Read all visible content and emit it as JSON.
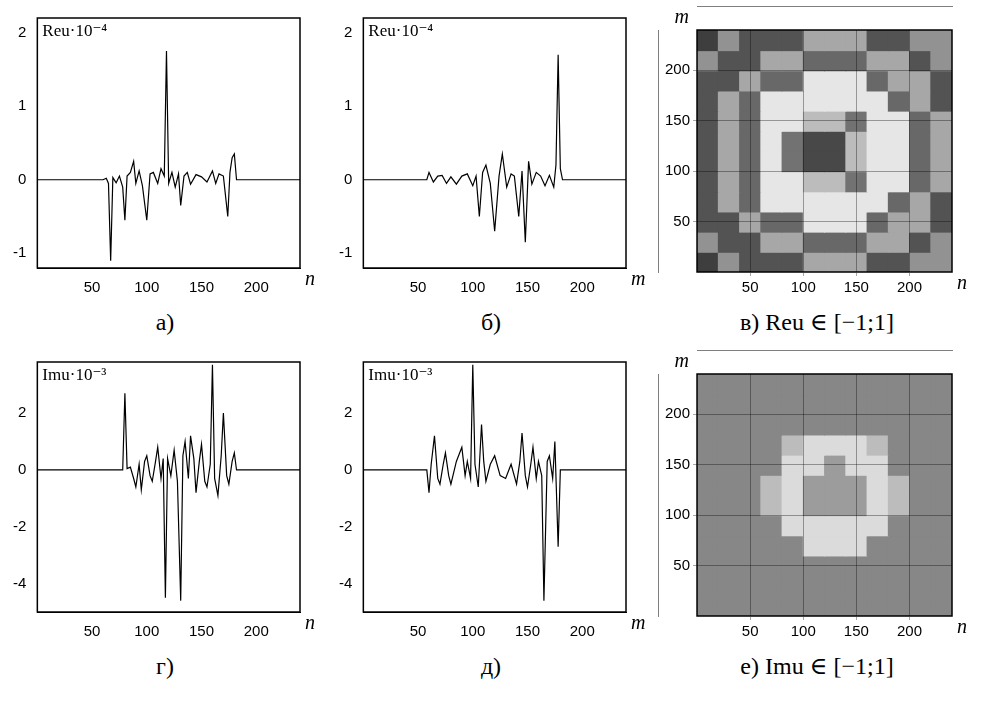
{
  "chart_data": [
    {
      "type": "line",
      "title": "а)",
      "annotation": "Reu·10⁻⁴",
      "x_label": "n",
      "color": "#000000",
      "grid": false,
      "x": [
        0,
        60,
        63,
        65,
        67,
        69,
        72,
        75,
        78,
        80,
        82,
        85,
        88,
        90,
        93,
        96,
        100,
        103,
        106,
        110,
        113,
        116,
        118,
        120,
        123,
        126,
        129,
        131,
        134,
        137,
        140,
        145,
        150,
        155,
        160,
        163,
        166,
        170,
        174,
        176,
        178,
        180,
        182,
        240
      ],
      "values": [
        0,
        0,
        0.02,
        -0.05,
        -1.1,
        0.03,
        -0.04,
        0.05,
        -0.1,
        -0.55,
        0.05,
        0.1,
        0.25,
        -0.05,
        0.12,
        -0.08,
        -0.55,
        0.08,
        0.1,
        -0.05,
        0.15,
        0.05,
        1.75,
        -0.05,
        0.1,
        -0.1,
        0.08,
        -0.35,
        0.05,
        0.1,
        -0.06,
        0.07,
        0.04,
        -0.03,
        0.12,
        -0.05,
        0.08,
        0.05,
        -0.5,
        0.1,
        0.3,
        0.35,
        0,
        0
      ],
      "xlim": [
        0,
        240
      ],
      "xticks": [
        50,
        100,
        150,
        200
      ],
      "ylim": [
        -1.2,
        2.2
      ],
      "yticks": [
        -1,
        0,
        1,
        2
      ]
    },
    {
      "type": "line",
      "title": "б)",
      "annotation": "Reu·10⁻⁴",
      "x_label": "m",
      "color": "#000000",
      "grid": false,
      "x": [
        0,
        58,
        60,
        64,
        68,
        72,
        76,
        80,
        85,
        90,
        95,
        100,
        103,
        106,
        109,
        112,
        116,
        120,
        124,
        127,
        131,
        135,
        138,
        142,
        145,
        148,
        151,
        154,
        158,
        162,
        166,
        170,
        174,
        176,
        178,
        180,
        182,
        240
      ],
      "values": [
        0,
        0,
        0.1,
        -0.03,
        0.05,
        0.06,
        -0.05,
        0.04,
        -0.06,
        0.05,
        0.08,
        -0.08,
        0.05,
        -0.5,
        0.1,
        0.2,
        -0.05,
        -0.7,
        0.05,
        0.35,
        -0.1,
        0.08,
        0.05,
        -0.5,
        0.12,
        -0.85,
        0.25,
        -0.06,
        0.1,
        0.05,
        -0.08,
        0.06,
        -0.1,
        0.2,
        1.7,
        0.15,
        0,
        0
      ],
      "xlim": [
        0,
        240
      ],
      "xticks": [
        50,
        100,
        150,
        200
      ],
      "ylim": [
        -1.2,
        2.2
      ],
      "yticks": [
        -1,
        0,
        1,
        2
      ]
    },
    {
      "type": "heatmap",
      "title": "в) Reu ∈ [−1;1]",
      "x_label": "n",
      "y_label": "m",
      "grid": true,
      "x": [
        10,
        30,
        50,
        70,
        90,
        110,
        130,
        150,
        170,
        190,
        210,
        230
      ],
      "y": [
        10,
        30,
        50,
        70,
        90,
        110,
        130,
        150,
        170,
        190,
        210,
        230
      ],
      "cells": [
        [
          -0.7,
          0.1,
          -0.5,
          -0.5,
          -0.5,
          0.3,
          0.3,
          0.3,
          -0.5,
          -0.5,
          0.1,
          0.1
        ],
        [
          0.1,
          -0.5,
          -0.5,
          0.3,
          0.3,
          -0.3,
          -0.3,
          -0.3,
          0.3,
          0.3,
          -0.5,
          0.1
        ],
        [
          -0.5,
          -0.5,
          0.3,
          -0.3,
          -0.3,
          0.9,
          0.9,
          0.9,
          -0.3,
          0.3,
          0.3,
          -0.5
        ],
        [
          -0.5,
          0.3,
          -0.3,
          0.9,
          0.9,
          0.9,
          0.9,
          0.9,
          0.9,
          -0.3,
          0.3,
          -0.5
        ],
        [
          -0.5,
          0.3,
          -0.3,
          0.9,
          0.9,
          0.5,
          0.5,
          -0.2,
          0.9,
          0.9,
          -0.3,
          0.3
        ],
        [
          -0.5,
          0.3,
          -0.3,
          0.9,
          -0.2,
          -0.6,
          -0.6,
          0.5,
          0.9,
          0.9,
          -0.3,
          0.3
        ],
        [
          -0.5,
          0.3,
          -0.3,
          0.9,
          -0.2,
          -0.6,
          -0.6,
          0.5,
          0.9,
          0.9,
          -0.3,
          0.3
        ],
        [
          -0.5,
          0.3,
          -0.3,
          0.9,
          0.9,
          0.5,
          0.5,
          -0.2,
          0.9,
          0.9,
          -0.3,
          0.3
        ],
        [
          -0.5,
          0.3,
          -0.3,
          0.9,
          0.9,
          0.9,
          0.9,
          0.9,
          0.9,
          -0.3,
          0.3,
          -0.5
        ],
        [
          -0.5,
          -0.5,
          0.3,
          -0.3,
          -0.3,
          0.9,
          0.9,
          0.9,
          -0.3,
          0.3,
          0.3,
          -0.5
        ],
        [
          0.1,
          -0.5,
          -0.5,
          0.3,
          0.3,
          -0.3,
          -0.3,
          -0.3,
          0.3,
          0.3,
          -0.5,
          0.1
        ],
        [
          -0.7,
          0.1,
          -0.5,
          -0.5,
          -0.5,
          0.3,
          0.3,
          0.3,
          -0.5,
          -0.5,
          0.1,
          0.1
        ]
      ],
      "color_range": [
        -1,
        1
      ],
      "xlim": [
        0,
        240
      ],
      "xticks": [
        50,
        100,
        150,
        200
      ],
      "ylim": [
        0,
        240
      ],
      "yticks": [
        50,
        100,
        150,
        200
      ]
    },
    {
      "type": "line",
      "title": "г)",
      "annotation": "Imu·10⁻³",
      "x_label": "n",
      "color": "#000000",
      "grid": false,
      "x": [
        0,
        78,
        80,
        82,
        85,
        88,
        90,
        93,
        95,
        98,
        100,
        103,
        105,
        108,
        110,
        113,
        115,
        117,
        119,
        122,
        125,
        128,
        131,
        133,
        135,
        138,
        140,
        143,
        145,
        148,
        150,
        153,
        155,
        158,
        160,
        162,
        165,
        168,
        170,
        173,
        175,
        178,
        180,
        182,
        240
      ],
      "values": [
        0,
        0,
        2.7,
        0.05,
        0.1,
        -0.3,
        -0.6,
        0.2,
        -0.7,
        0.3,
        0.5,
        -0.2,
        -0.4,
        0.3,
        0.8,
        -0.3,
        0.4,
        -4.5,
        0.4,
        -0.2,
        0.7,
        -0.4,
        -4.6,
        0.5,
        1.0,
        -0.3,
        1.2,
        0.4,
        -0.8,
        0.3,
        0.9,
        -0.4,
        -0.6,
        0.2,
        3.7,
        -0.3,
        -0.9,
        0.5,
        2.0,
        -0.2,
        -0.5,
        0.3,
        0.6,
        0,
        0
      ],
      "xlim": [
        0,
        240
      ],
      "xticks": [
        50,
        100,
        150,
        200
      ],
      "ylim": [
        -5,
        3.8
      ],
      "yticks": [
        -4,
        -2,
        0,
        2
      ]
    },
    {
      "type": "line",
      "title": "д)",
      "annotation": "Imu·10⁻³",
      "x_label": "m",
      "color": "#000000",
      "grid": false,
      "x": [
        0,
        58,
        60,
        62,
        65,
        68,
        70,
        73,
        75,
        78,
        80,
        85,
        90,
        93,
        95,
        98,
        100,
        102,
        105,
        108,
        110,
        112,
        116,
        120,
        125,
        130,
        135,
        140,
        143,
        145,
        148,
        150,
        153,
        155,
        158,
        160,
        163,
        165,
        168,
        170,
        173,
        175,
        178,
        180,
        240
      ],
      "values": [
        0,
        0,
        -0.8,
        0.2,
        1.2,
        -0.3,
        -0.5,
        0.2,
        0.6,
        -0.2,
        -0.5,
        0.3,
        0.8,
        -0.2,
        0.3,
        -0.3,
        3.7,
        0.2,
        -0.6,
        1.6,
        0.3,
        -0.4,
        0.2,
        0.5,
        -0.2,
        -0.3,
        0.2,
        -0.5,
        0.3,
        1.3,
        -0.2,
        -0.6,
        0.2,
        0.8,
        -0.3,
        0.3,
        -0.2,
        -4.6,
        0.3,
        0.5,
        -0.3,
        1.0,
        -2.7,
        0,
        0
      ],
      "xlim": [
        0,
        240
      ],
      "xticks": [
        50,
        100,
        150,
        200
      ],
      "ylim": [
        -5,
        3.8
      ],
      "yticks": [
        -4,
        -2,
        0,
        2
      ]
    },
    {
      "type": "heatmap",
      "title": "е) Imu ∈ [−1;1]",
      "x_label": "n",
      "y_label": "m",
      "grid": true,
      "x": [
        10,
        30,
        50,
        70,
        90,
        110,
        130,
        150,
        170,
        190,
        210,
        230
      ],
      "y": [
        10,
        30,
        50,
        70,
        90,
        110,
        130,
        150,
        170,
        190,
        210,
        230
      ],
      "cells": [
        [
          0,
          0,
          0,
          0,
          0,
          0,
          0,
          0,
          0,
          0,
          0,
          0
        ],
        [
          0,
          0,
          0,
          0,
          0,
          0,
          0,
          0,
          0,
          0,
          0,
          0
        ],
        [
          0,
          0,
          0,
          0,
          0,
          0,
          0,
          0,
          0,
          0,
          0,
          0
        ],
        [
          0,
          0,
          0,
          0,
          0,
          0.8,
          0.8,
          0.8,
          0,
          0,
          0,
          0
        ],
        [
          0,
          0,
          0,
          0,
          0.8,
          0.8,
          0.8,
          0.8,
          0.8,
          0,
          0,
          0
        ],
        [
          0,
          0,
          0,
          0.5,
          0.8,
          0.2,
          0.2,
          0.2,
          0.8,
          0.5,
          0,
          0
        ],
        [
          0,
          0,
          0,
          0.5,
          0.8,
          0.2,
          0.2,
          0.2,
          0.8,
          0.5,
          0,
          0
        ],
        [
          0,
          0,
          0,
          0,
          0.8,
          0.8,
          0.2,
          0.8,
          0.8,
          0,
          0,
          0
        ],
        [
          0,
          0,
          0,
          0,
          0.5,
          0.8,
          0.8,
          0.8,
          0.5,
          0,
          0,
          0
        ],
        [
          0,
          0,
          0,
          0,
          0,
          0,
          0,
          0,
          0,
          0,
          0,
          0
        ],
        [
          0,
          0,
          0,
          0,
          0,
          0,
          0,
          0,
          0,
          0,
          0,
          0
        ],
        [
          0,
          0,
          0,
          0,
          0,
          0,
          0,
          0,
          0,
          0,
          0,
          0
        ]
      ],
      "color_range": [
        -1,
        1
      ],
      "xlim": [
        0,
        240
      ],
      "xticks": [
        50,
        100,
        150,
        200
      ],
      "ylim": [
        0,
        240
      ],
      "yticks": [
        50,
        100,
        150,
        200
      ]
    }
  ]
}
